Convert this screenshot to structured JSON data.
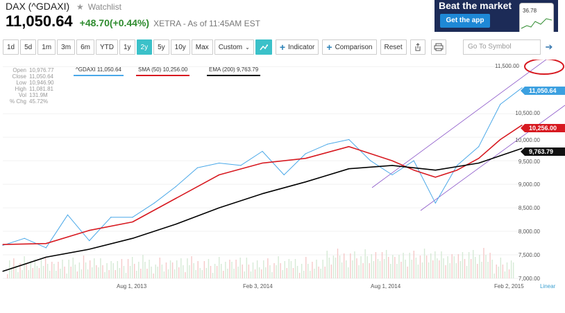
{
  "header": {
    "title": "DAX (^GDAXI)",
    "watchlist_label": "Watchlist",
    "price": "11,050.64",
    "change": "+48.70(+0.44%)",
    "exchange_time": "XETRA - As of 11:45AM EST"
  },
  "ad": {
    "headline": "Beat the market",
    "button_label": "Get the app",
    "phone_value": "36.78"
  },
  "toolbar": {
    "ranges": [
      "1d",
      "5d",
      "1m",
      "3m",
      "6m",
      "YTD",
      "1y",
      "2y",
      "5y",
      "10y",
      "Max"
    ],
    "active_range": "2y",
    "custom_label": "Custom",
    "indicator_label": "Indicator",
    "comparison_label": "Comparison",
    "reset_label": "Reset",
    "symbol_placeholder": "Go To Symbol"
  },
  "stats": [
    {
      "label": "Open",
      "value": "10,976.77"
    },
    {
      "label": "Close",
      "value": "11,050.64"
    },
    {
      "label": "Low",
      "value": "10,946.90"
    },
    {
      "label": "High",
      "value": "11,081.81"
    },
    {
      "label": "Vol",
      "value": "131.9M"
    },
    {
      "label": "% Chg",
      "value": "45.72%"
    }
  ],
  "legend": {
    "series": "^GDAXI 11,050.64",
    "sma": "SMA (50) 10,256.00",
    "ema": "EMA (200) 9,763.79"
  },
  "price_tags": {
    "last": "11,050.64",
    "sma": "10,256.00",
    "ema": "9,763.79"
  },
  "axis": {
    "y_labels": [
      "11,500.00",
      "10,500.00",
      "10,000.00",
      "9,500.00",
      "9,000.00",
      "8,500.00",
      "8,000.00",
      "7,500.00",
      "7,000.00"
    ],
    "x_labels": [
      "Aug 1, 2013",
      "Feb 3, 2014",
      "Aug 1, 2014",
      "Feb 2, 2015"
    ],
    "scale_label": "Linear"
  },
  "colors": {
    "price_line": "#4aa8e8",
    "sma_line": "#d71920",
    "ema_line": "#000000",
    "channel": "#8a55c8",
    "highlight_ring": "#d71920",
    "active_button": "#3bc1c9"
  },
  "chart_data": {
    "type": "line",
    "xlabel": "",
    "ylabel": "",
    "ylim": [
      7000,
      11650
    ],
    "x_range": [
      "2013-02",
      "2015-02"
    ],
    "series": [
      {
        "name": "^GDAXI",
        "x": [
          "2013-02",
          "2013-03",
          "2013-04",
          "2013-05",
          "2013-06",
          "2013-07",
          "2013-08",
          "2013-09",
          "2013-10",
          "2013-11",
          "2013-12",
          "2014-01",
          "2014-02",
          "2014-03",
          "2014-04",
          "2014-05",
          "2014-06",
          "2014-07",
          "2014-08",
          "2014-09",
          "2014-10",
          "2014-11",
          "2014-12",
          "2015-01",
          "2015-02"
        ],
        "values": [
          7700,
          7850,
          7650,
          8350,
          7800,
          8300,
          8300,
          8600,
          8950,
          9350,
          9450,
          9400,
          9700,
          9200,
          9650,
          9850,
          9950,
          9500,
          9200,
          9500,
          8600,
          9400,
          9800,
          10700,
          11050
        ]
      },
      {
        "name": "SMA (50)",
        "x": [
          "2013-02",
          "2013-04",
          "2013-06",
          "2013-08",
          "2013-10",
          "2013-12",
          "2014-02",
          "2014-04",
          "2014-06",
          "2014-07",
          "2014-08",
          "2014-09",
          "2014-10",
          "2014-11",
          "2014-12",
          "2015-01",
          "2015-02"
        ],
        "values": [
          7720,
          7740,
          8020,
          8200,
          8700,
          9200,
          9450,
          9550,
          9800,
          9650,
          9500,
          9300,
          9150,
          9300,
          9550,
          9950,
          10256
        ]
      },
      {
        "name": "EMA (200)",
        "x": [
          "2013-02",
          "2013-04",
          "2013-06",
          "2013-08",
          "2013-10",
          "2013-12",
          "2014-02",
          "2014-04",
          "2014-06",
          "2014-08",
          "2014-10",
          "2014-12",
          "2015-02"
        ],
        "values": [
          7150,
          7450,
          7620,
          7850,
          8150,
          8500,
          8800,
          9050,
          9330,
          9400,
          9300,
          9450,
          9764
        ]
      }
    ]
  }
}
